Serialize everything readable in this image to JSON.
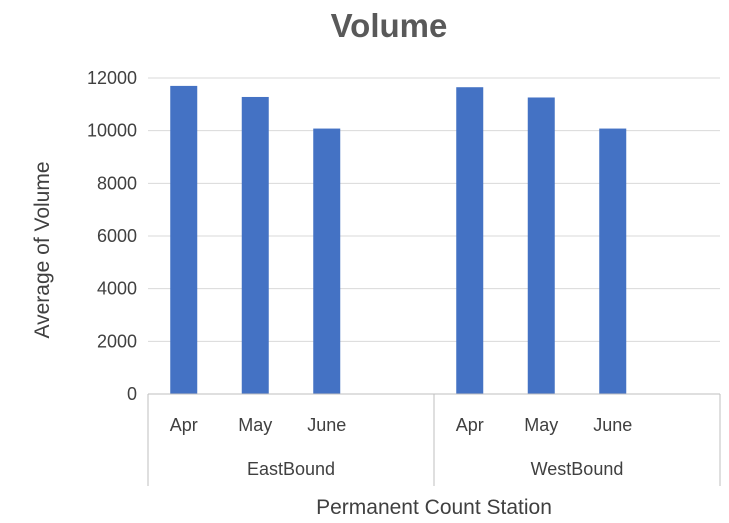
{
  "chart_data": {
    "type": "bar",
    "title": "Volume",
    "xlabel": "Permanent Count Station",
    "ylabel": "Average of Volume",
    "ylim": [
      0,
      12000
    ],
    "yticks": [
      0,
      2000,
      4000,
      6000,
      8000,
      10000,
      12000
    ],
    "grid": true,
    "legend": "none",
    "groups": [
      {
        "label": "EastBound",
        "categories": [
          "Apr",
          "May",
          "June"
        ],
        "values": [
          11700,
          11280,
          10080
        ]
      },
      {
        "label": "WestBound",
        "categories": [
          "Apr",
          "May",
          "June"
        ],
        "values": [
          11650,
          11260,
          10080
        ]
      }
    ],
    "colors": {
      "bar": "#4472c4"
    }
  }
}
